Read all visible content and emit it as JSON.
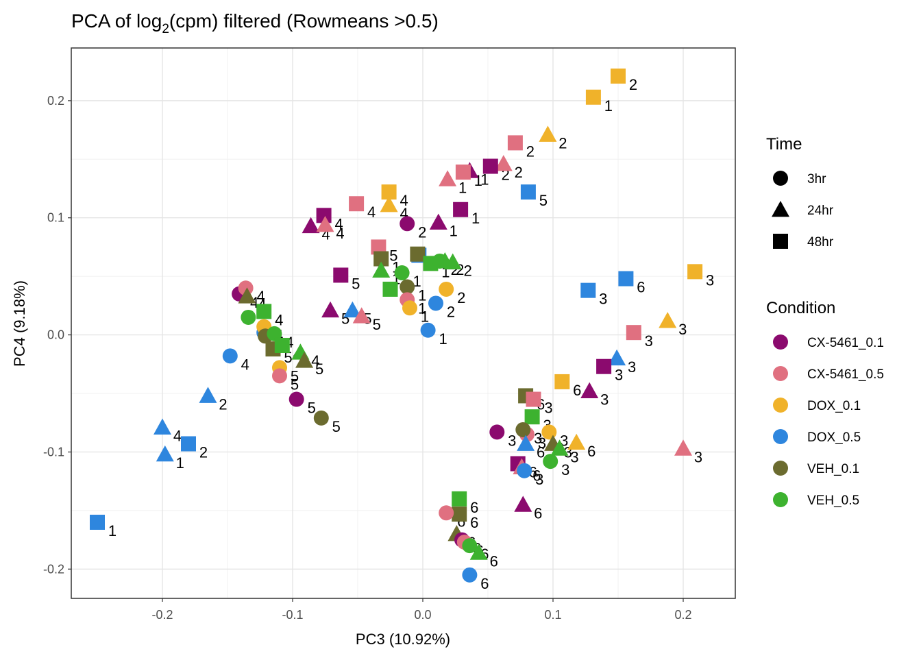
{
  "chart_data": {
    "type": "scatter",
    "title_main": "PCA of log",
    "title_sub": "2",
    "title_rest": "(cpm) filtered (Rowmeans >0.5)",
    "xlabel": "PC3 (10.92%)",
    "ylabel": "PC4 (9.18%)",
    "xlim": [
      -0.27,
      0.24
    ],
    "ylim": [
      -0.225,
      0.245
    ],
    "xticks": [
      -0.2,
      -0.1,
      0.0,
      0.1,
      0.2
    ],
    "xtick_labels": [
      "-0.2",
      "-0.1",
      "0.0",
      "0.1",
      "0.2"
    ],
    "yticks": [
      -0.2,
      -0.1,
      0.0,
      0.1,
      0.2
    ],
    "ytick_labels": [
      "-0.2",
      "-0.1",
      "0.0",
      "0.1",
      "0.2"
    ],
    "grid": true,
    "legend_position": "right",
    "legend_time": {
      "title": "Time",
      "items": [
        {
          "label": "3hr",
          "shape": "circle"
        },
        {
          "label": "24hr",
          "shape": "triangle"
        },
        {
          "label": "48hr",
          "shape": "square"
        }
      ]
    },
    "legend_condition": {
      "title": "Condition",
      "items": [
        {
          "label": "CX-5461_0.1",
          "color": "#8B0A6E"
        },
        {
          "label": "CX-5461_0.5",
          "color": "#E07080"
        },
        {
          "label": "DOX_0.1",
          "color": "#F0B22A"
        },
        {
          "label": "DOX_0.5",
          "color": "#2E86DE"
        },
        {
          "label": "VEH_0.1",
          "color": "#6B6B2F"
        },
        {
          "label": "VEH_0.5",
          "color": "#3DB22F"
        }
      ]
    },
    "points": [
      {
        "x": 0.15,
        "y": 0.221,
        "cond": "DOX_0.1",
        "time": "48hr",
        "label": "2"
      },
      {
        "x": 0.131,
        "y": 0.203,
        "cond": "DOX_0.1",
        "time": "48hr",
        "label": "1"
      },
      {
        "x": 0.071,
        "y": 0.164,
        "cond": "CX-5461_0.5",
        "time": "48hr",
        "label": "2"
      },
      {
        "x": 0.096,
        "y": 0.171,
        "cond": "DOX_0.1",
        "time": "24hr",
        "label": "2"
      },
      {
        "x": 0.062,
        "y": 0.146,
        "cond": "CX-5461_0.5",
        "time": "24hr",
        "label": "2"
      },
      {
        "x": 0.052,
        "y": 0.144,
        "cond": "CX-5461_0.1",
        "time": "48hr",
        "label": "2"
      },
      {
        "x": 0.036,
        "y": 0.14,
        "cond": "CX-5461_0.1",
        "time": "24hr",
        "label": "1"
      },
      {
        "x": 0.031,
        "y": 0.139,
        "cond": "CX-5461_0.5",
        "time": "48hr",
        "label": "1"
      },
      {
        "x": 0.019,
        "y": 0.133,
        "cond": "CX-5461_0.5",
        "time": "24hr",
        "label": "1"
      },
      {
        "x": 0.081,
        "y": 0.122,
        "cond": "DOX_0.5",
        "time": "48hr",
        "label": "5"
      },
      {
        "x": 0.029,
        "y": 0.107,
        "cond": "CX-5461_0.1",
        "time": "48hr",
        "label": "1"
      },
      {
        "x": 0.012,
        "y": 0.096,
        "cond": "CX-5461_0.1",
        "time": "24hr",
        "label": "1"
      },
      {
        "x": -0.026,
        "y": 0.122,
        "cond": "DOX_0.1",
        "time": "48hr",
        "label": "4"
      },
      {
        "x": -0.026,
        "y": 0.111,
        "cond": "DOX_0.1",
        "time": "24hr",
        "label": "4"
      },
      {
        "x": -0.051,
        "y": 0.112,
        "cond": "CX-5461_0.5",
        "time": "48hr",
        "label": "4"
      },
      {
        "x": -0.012,
        "y": 0.095,
        "cond": "CX-5461_0.1",
        "time": "3hr",
        "label": "2"
      },
      {
        "x": -0.076,
        "y": 0.102,
        "cond": "CX-5461_0.1",
        "time": "48hr",
        "label": "4"
      },
      {
        "x": -0.086,
        "y": 0.093,
        "cond": "CX-5461_0.1",
        "time": "24hr",
        "label": "4"
      },
      {
        "x": -0.075,
        "y": 0.094,
        "cond": "CX-5461_0.5",
        "time": "24hr",
        "label": "4"
      },
      {
        "x": -0.034,
        "y": 0.075,
        "cond": "CX-5461_0.5",
        "time": "48hr",
        "label": "5"
      },
      {
        "x": -0.032,
        "y": 0.065,
        "cond": "VEH_0.1",
        "time": "48hr",
        "label": "1"
      },
      {
        "x": -0.003,
        "y": 0.068,
        "cond": "DOX_0.5",
        "time": "48hr",
        "label": "1"
      },
      {
        "x": -0.004,
        "y": 0.069,
        "cond": "VEH_0.1",
        "time": "48hr",
        "label": "1"
      },
      {
        "x": 0.006,
        "y": 0.061,
        "cond": "VEH_0.5",
        "time": "48hr",
        "label": "1"
      },
      {
        "x": 0.013,
        "y": 0.063,
        "cond": "VEH_0.5",
        "time": "3hr",
        "label": "2"
      },
      {
        "x": 0.023,
        "y": 0.062,
        "cond": "VEH_0.5",
        "time": "24hr",
        "label": "2"
      },
      {
        "x": 0.017,
        "y": 0.063,
        "cond": "VEH_0.5",
        "time": "24hr",
        "label": "2"
      },
      {
        "x": -0.063,
        "y": 0.051,
        "cond": "CX-5461_0.1",
        "time": "48hr",
        "label": "5"
      },
      {
        "x": -0.032,
        "y": 0.055,
        "cond": "VEH_0.5",
        "time": "24hr",
        "label": "1"
      },
      {
        "x": -0.016,
        "y": 0.053,
        "cond": "VEH_0.5",
        "time": "3hr",
        "label": "1"
      },
      {
        "x": -0.012,
        "y": 0.041,
        "cond": "VEH_0.1",
        "time": "3hr",
        "label": "1"
      },
      {
        "x": -0.025,
        "y": 0.039,
        "cond": "VEH_0.5",
        "time": "48hr",
        "label": "1"
      },
      {
        "x": 0.018,
        "y": 0.039,
        "cond": "DOX_0.1",
        "time": "3hr",
        "label": "2"
      },
      {
        "x": -0.012,
        "y": 0.03,
        "cond": "CX-5461_0.5",
        "time": "3hr",
        "label": "1"
      },
      {
        "x": -0.01,
        "y": 0.023,
        "cond": "DOX_0.1",
        "time": "3hr",
        "label": "1"
      },
      {
        "x": 0.01,
        "y": 0.027,
        "cond": "DOX_0.5",
        "time": "3hr",
        "label": "2"
      },
      {
        "x": 0.004,
        "y": 0.004,
        "cond": "DOX_0.5",
        "time": "3hr",
        "label": "1"
      },
      {
        "x": -0.071,
        "y": 0.021,
        "cond": "CX-5461_0.1",
        "time": "24hr",
        "label": "5"
      },
      {
        "x": -0.054,
        "y": 0.021,
        "cond": "DOX_0.5",
        "time": "24hr",
        "label": "5"
      },
      {
        "x": -0.047,
        "y": 0.016,
        "cond": "CX-5461_0.5",
        "time": "24hr",
        "label": "5"
      },
      {
        "x": -0.141,
        "y": 0.035,
        "cond": "CX-5461_0.1",
        "time": "3hr",
        "label": "4"
      },
      {
        "x": -0.136,
        "y": 0.04,
        "cond": "CX-5461_0.5",
        "time": "3hr",
        "label": "4"
      },
      {
        "x": -0.135,
        "y": 0.033,
        "cond": "VEH_0.1",
        "time": "24hr",
        "label": "4"
      },
      {
        "x": -0.134,
        "y": 0.015,
        "cond": "VEH_0.5",
        "time": "3hr",
        "label": "4"
      },
      {
        "x": -0.122,
        "y": 0.02,
        "cond": "VEH_0.5",
        "time": "48hr",
        "label": "4"
      },
      {
        "x": -0.122,
        "y": 0.002,
        "cond": "DOX_0.5",
        "time": "3hr",
        "label": "4"
      },
      {
        "x": -0.122,
        "y": 0.007,
        "cond": "DOX_0.1",
        "time": "3hr",
        "label": "4"
      },
      {
        "x": -0.121,
        "y": -0.001,
        "cond": "VEH_0.1",
        "time": "3hr",
        "label": "4"
      },
      {
        "x": -0.114,
        "y": 0.001,
        "cond": "VEH_0.5",
        "time": "3hr",
        "label": "4"
      },
      {
        "x": -0.115,
        "y": -0.012,
        "cond": "VEH_0.1",
        "time": "48hr",
        "label": "5"
      },
      {
        "x": -0.108,
        "y": -0.009,
        "cond": "VEH_0.5",
        "time": "48hr",
        "label": "4"
      },
      {
        "x": -0.094,
        "y": -0.015,
        "cond": "VEH_0.5",
        "time": "24hr",
        "label": "4"
      },
      {
        "x": -0.091,
        "y": -0.022,
        "cond": "VEH_0.1",
        "time": "24hr",
        "label": "5"
      },
      {
        "x": -0.11,
        "y": -0.028,
        "cond": "DOX_0.1",
        "time": "3hr",
        "label": "5"
      },
      {
        "x": -0.11,
        "y": -0.035,
        "cond": "CX-5461_0.5",
        "time": "3hr",
        "label": "5"
      },
      {
        "x": -0.097,
        "y": -0.055,
        "cond": "CX-5461_0.1",
        "time": "3hr",
        "label": "5"
      },
      {
        "x": -0.078,
        "y": -0.071,
        "cond": "VEH_0.1",
        "time": "3hr",
        "label": "5"
      },
      {
        "x": -0.148,
        "y": -0.018,
        "cond": "DOX_0.5",
        "time": "3hr",
        "label": "4"
      },
      {
        "x": -0.165,
        "y": -0.052,
        "cond": "DOX_0.5",
        "time": "24hr",
        "label": "2"
      },
      {
        "x": -0.2,
        "y": -0.079,
        "cond": "DOX_0.5",
        "time": "24hr",
        "label": "4"
      },
      {
        "x": -0.18,
        "y": -0.093,
        "cond": "DOX_0.5",
        "time": "48hr",
        "label": "2"
      },
      {
        "x": -0.198,
        "y": -0.102,
        "cond": "DOX_0.5",
        "time": "24hr",
        "label": "1"
      },
      {
        "x": -0.25,
        "y": -0.16,
        "cond": "DOX_0.5",
        "time": "48hr",
        "label": "1"
      },
      {
        "x": 0.209,
        "y": 0.054,
        "cond": "DOX_0.1",
        "time": "48hr",
        "label": "3"
      },
      {
        "x": 0.156,
        "y": 0.048,
        "cond": "DOX_0.5",
        "time": "48hr",
        "label": "6"
      },
      {
        "x": 0.127,
        "y": 0.038,
        "cond": "DOX_0.5",
        "time": "48hr",
        "label": "3"
      },
      {
        "x": 0.162,
        "y": 0.002,
        "cond": "CX-5461_0.5",
        "time": "48hr",
        "label": "3"
      },
      {
        "x": 0.188,
        "y": 0.012,
        "cond": "DOX_0.1",
        "time": "24hr",
        "label": "3"
      },
      {
        "x": 0.149,
        "y": -0.02,
        "cond": "DOX_0.5",
        "time": "24hr",
        "label": "3"
      },
      {
        "x": 0.139,
        "y": -0.027,
        "cond": "CX-5461_0.1",
        "time": "48hr",
        "label": "3"
      },
      {
        "x": 0.107,
        "y": -0.04,
        "cond": "DOX_0.1",
        "time": "48hr",
        "label": "6"
      },
      {
        "x": 0.128,
        "y": -0.048,
        "cond": "CX-5461_0.1",
        "time": "24hr",
        "label": "3"
      },
      {
        "x": 0.079,
        "y": -0.052,
        "cond": "VEH_0.1",
        "time": "48hr",
        "label": "6"
      },
      {
        "x": 0.085,
        "y": -0.055,
        "cond": "CX-5461_0.5",
        "time": "48hr",
        "label": "3"
      },
      {
        "x": 0.084,
        "y": -0.07,
        "cond": "VEH_0.5",
        "time": "48hr",
        "label": "3"
      },
      {
        "x": 0.097,
        "y": -0.083,
        "cond": "DOX_0.1",
        "time": "3hr",
        "label": "3"
      },
      {
        "x": 0.08,
        "y": -0.085,
        "cond": "CX-5461_0.5",
        "time": "3hr",
        "label": "3"
      },
      {
        "x": 0.057,
        "y": -0.083,
        "cond": "CX-5461_0.1",
        "time": "3hr",
        "label": "3"
      },
      {
        "x": 0.077,
        "y": -0.081,
        "cond": "VEH_0.1",
        "time": "3hr",
        "label": "3"
      },
      {
        "x": 0.079,
        "y": -0.093,
        "cond": "DOX_0.5",
        "time": "24hr",
        "label": "6"
      },
      {
        "x": 0.1,
        "y": -0.093,
        "cond": "VEH_0.1",
        "time": "24hr",
        "label": "3"
      },
      {
        "x": 0.105,
        "y": -0.097,
        "cond": "VEH_0.5",
        "time": "24hr",
        "label": "3"
      },
      {
        "x": 0.118,
        "y": -0.092,
        "cond": "DOX_0.1",
        "time": "24hr",
        "label": "6"
      },
      {
        "x": 0.2,
        "y": -0.097,
        "cond": "CX-5461_0.5",
        "time": "24hr",
        "label": "3"
      },
      {
        "x": 0.073,
        "y": -0.11,
        "cond": "CX-5461_0.1",
        "time": "48hr",
        "label": "6"
      },
      {
        "x": 0.076,
        "y": -0.113,
        "cond": "CX-5461_0.5",
        "time": "24hr",
        "label": "6"
      },
      {
        "x": 0.098,
        "y": -0.108,
        "cond": "VEH_0.5",
        "time": "3hr",
        "label": "3"
      },
      {
        "x": 0.078,
        "y": -0.116,
        "cond": "DOX_0.5",
        "time": "3hr",
        "label": "3"
      },
      {
        "x": 0.077,
        "y": -0.145,
        "cond": "CX-5461_0.1",
        "time": "24hr",
        "label": "6"
      },
      {
        "x": 0.028,
        "y": -0.14,
        "cond": "VEH_0.5",
        "time": "48hr",
        "label": "6"
      },
      {
        "x": 0.028,
        "y": -0.153,
        "cond": "VEH_0.1",
        "time": "48hr",
        "label": "6"
      },
      {
        "x": 0.018,
        "y": -0.152,
        "cond": "CX-5461_0.5",
        "time": "3hr",
        "label": "6"
      },
      {
        "x": 0.026,
        "y": -0.17,
        "cond": "VEH_0.1",
        "time": "24hr",
        "label": "6"
      },
      {
        "x": 0.03,
        "y": -0.175,
        "cond": "CX-5461_0.1",
        "time": "3hr",
        "label": "6"
      },
      {
        "x": 0.032,
        "y": -0.177,
        "cond": "CX-5461_0.5",
        "time": "3hr",
        "label": "6"
      },
      {
        "x": 0.036,
        "y": -0.18,
        "cond": "VEH_0.5",
        "time": "3hr",
        "label": "6"
      },
      {
        "x": 0.043,
        "y": -0.186,
        "cond": "VEH_0.5",
        "time": "24hr",
        "label": "6"
      },
      {
        "x": 0.036,
        "y": -0.205,
        "cond": "DOX_0.5",
        "time": "3hr",
        "label": "6"
      }
    ]
  }
}
